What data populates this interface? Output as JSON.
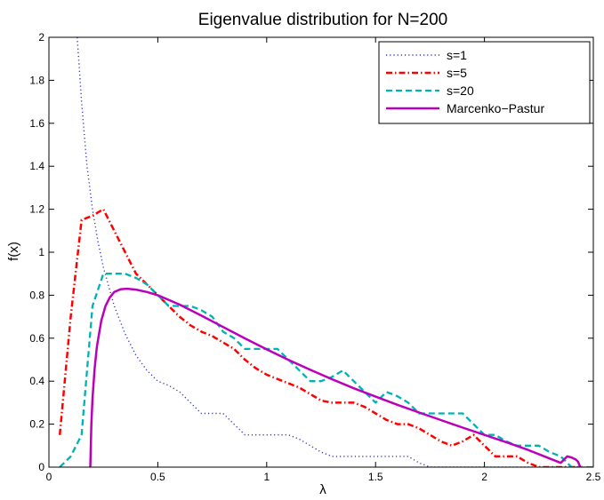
{
  "chart_data": {
    "type": "line",
    "title": "Eigenvalue distribution for N=200",
    "xlabel": "λ",
    "ylabel": "f(x)",
    "xlim": [
      0,
      2.5
    ],
    "ylim": [
      0,
      2
    ],
    "xticks": [
      "0",
      "0.5",
      "1",
      "1.5",
      "2",
      "2.5"
    ],
    "yticks": [
      "0",
      "0.2",
      "0.4",
      "0.6",
      "0.8",
      "1",
      "1.2",
      "1.4",
      "1.6",
      "1.8",
      "2"
    ],
    "grid": false,
    "legend_position": "top-right",
    "series": [
      {
        "name": "s=1",
        "color": "#3333cc",
        "style": "dotted",
        "x": [
          0.13,
          0.15,
          0.175,
          0.2,
          0.225,
          0.25,
          0.3,
          0.35,
          0.4,
          0.45,
          0.5,
          0.55,
          0.6,
          0.65,
          0.7,
          0.75,
          0.8,
          0.85,
          0.9,
          0.95,
          1.0,
          1.05,
          1.1,
          1.15,
          1.2,
          1.25,
          1.3,
          1.35,
          1.4,
          1.45,
          1.5,
          1.55,
          1.6,
          1.65,
          1.7,
          1.75,
          1.8,
          1.9,
          2.0,
          2.1,
          2.2,
          2.3,
          2.4,
          2.5
        ],
        "y": [
          2.0,
          1.7,
          1.4,
          1.2,
          1.05,
          0.93,
          0.75,
          0.62,
          0.52,
          0.45,
          0.4,
          0.38,
          0.35,
          0.3,
          0.25,
          0.25,
          0.25,
          0.2,
          0.15,
          0.15,
          0.15,
          0.15,
          0.15,
          0.13,
          0.1,
          0.07,
          0.05,
          0.05,
          0.05,
          0.05,
          0.05,
          0.05,
          0.05,
          0.05,
          0.02,
          0.0,
          0.0,
          0.0,
          0.0,
          0.0,
          0.0,
          0.0,
          0.0,
          0.0
        ]
      },
      {
        "name": "s=5",
        "color": "#ff0000",
        "style": "dashdot",
        "x": [
          0.05,
          0.1,
          0.15,
          0.2,
          0.25,
          0.3,
          0.35,
          0.4,
          0.45,
          0.5,
          0.55,
          0.6,
          0.65,
          0.7,
          0.75,
          0.8,
          0.85,
          0.9,
          0.95,
          1.0,
          1.05,
          1.1,
          1.15,
          1.2,
          1.25,
          1.3,
          1.35,
          1.4,
          1.45,
          1.5,
          1.55,
          1.6,
          1.65,
          1.7,
          1.75,
          1.8,
          1.85,
          1.9,
          1.95,
          2.0,
          2.05,
          2.1,
          2.15,
          2.2,
          2.25,
          2.3,
          2.35,
          2.4,
          2.45
        ],
        "y": [
          0.15,
          0.7,
          1.15,
          1.17,
          1.2,
          1.1,
          1.0,
          0.9,
          0.85,
          0.8,
          0.75,
          0.7,
          0.66,
          0.63,
          0.61,
          0.58,
          0.55,
          0.5,
          0.46,
          0.43,
          0.41,
          0.39,
          0.37,
          0.34,
          0.31,
          0.3,
          0.3,
          0.3,
          0.28,
          0.25,
          0.22,
          0.2,
          0.2,
          0.18,
          0.15,
          0.12,
          0.1,
          0.12,
          0.15,
          0.1,
          0.05,
          0.05,
          0.05,
          0.02,
          0.0,
          0.0,
          0.0,
          0.0,
          0.0
        ]
      },
      {
        "name": "s=20",
        "color": "#00b3b3",
        "style": "dashed",
        "x": [
          0.05,
          0.1,
          0.15,
          0.2,
          0.25,
          0.3,
          0.35,
          0.4,
          0.45,
          0.5,
          0.55,
          0.6,
          0.65,
          0.7,
          0.75,
          0.8,
          0.85,
          0.9,
          0.95,
          1.0,
          1.05,
          1.1,
          1.15,
          1.2,
          1.25,
          1.3,
          1.35,
          1.4,
          1.45,
          1.5,
          1.55,
          1.6,
          1.65,
          1.7,
          1.75,
          1.8,
          1.85,
          1.9,
          1.95,
          2.0,
          2.05,
          2.1,
          2.15,
          2.2,
          2.25,
          2.3,
          2.35,
          2.4,
          2.45,
          2.5
        ],
        "y": [
          0.0,
          0.05,
          0.15,
          0.75,
          0.9,
          0.9,
          0.9,
          0.88,
          0.85,
          0.8,
          0.75,
          0.75,
          0.75,
          0.73,
          0.7,
          0.63,
          0.6,
          0.55,
          0.55,
          0.55,
          0.55,
          0.5,
          0.45,
          0.4,
          0.4,
          0.42,
          0.45,
          0.4,
          0.35,
          0.3,
          0.35,
          0.33,
          0.3,
          0.25,
          0.25,
          0.25,
          0.25,
          0.25,
          0.2,
          0.15,
          0.15,
          0.12,
          0.1,
          0.1,
          0.1,
          0.07,
          0.05,
          0.0,
          0.0,
          0.0
        ]
      },
      {
        "name": "Marcenko−Pastur",
        "color": "#bb00bb",
        "style": "solid",
        "x": [
          0.19,
          0.195,
          0.2,
          0.21,
          0.22,
          0.24,
          0.26,
          0.28,
          0.3,
          0.33,
          0.36,
          0.4,
          0.45,
          0.5,
          0.6,
          0.7,
          0.8,
          0.9,
          1.0,
          1.1,
          1.2,
          1.3,
          1.4,
          1.5,
          1.6,
          1.7,
          1.8,
          1.9,
          2.0,
          2.1,
          2.2,
          2.3,
          2.35,
          2.38,
          2.4,
          2.42,
          2.43,
          2.44
        ],
        "y": [
          0.0,
          0.2,
          0.32,
          0.46,
          0.56,
          0.68,
          0.75,
          0.79,
          0.815,
          0.828,
          0.83,
          0.826,
          0.815,
          0.8,
          0.756,
          0.705,
          0.652,
          0.599,
          0.548,
          0.499,
          0.453,
          0.409,
          0.367,
          0.328,
          0.29,
          0.254,
          0.219,
          0.184,
          0.15,
          0.116,
          0.08,
          0.04,
          0.02,
          0.05,
          0.045,
          0.035,
          0.025,
          0.0
        ]
      }
    ]
  }
}
